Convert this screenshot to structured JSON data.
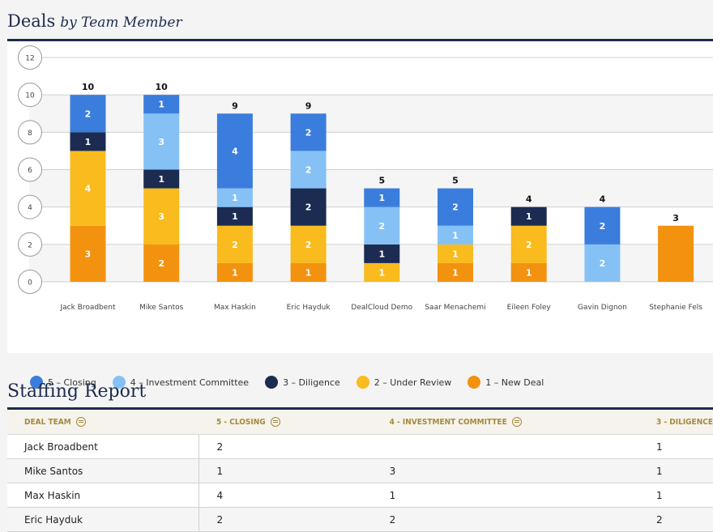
{
  "deals_section": {
    "title": "Deals",
    "subtitle": "by Team Member"
  },
  "colors": {
    "closing": "#3b7ddd",
    "investment_committee": "#86c1f5",
    "diligence": "#1b2b52",
    "under_review": "#f9bb1d",
    "new_deal": "#f3920f",
    "title": "#1c2c4c"
  },
  "chart_data": {
    "type": "bar",
    "stacked": true,
    "categories": [
      "Jack Broadbent",
      "Mike Santos",
      "Max Haskin",
      "Eric Hayduk",
      "DealCloud Demo",
      "Saar Menachemi",
      "Eileen Foley",
      "Gavin Dignon",
      "Stephanie Fels"
    ],
    "series": [
      {
        "name": "1 – New Deal",
        "color": "#f3920f",
        "values": [
          3,
          2,
          1,
          1,
          0,
          1,
          1,
          0,
          3
        ]
      },
      {
        "name": "2 – Under Review",
        "color": "#f9bb1d",
        "values": [
          4,
          3,
          2,
          2,
          1,
          1,
          2,
          0,
          0
        ]
      },
      {
        "name": "3 – Diligence",
        "color": "#1b2b52",
        "values": [
          1,
          1,
          1,
          2,
          1,
          0,
          1,
          0,
          0
        ]
      },
      {
        "name": "4 – Investment Committee",
        "color": "#86c1f5",
        "values": [
          0,
          3,
          1,
          2,
          2,
          1,
          0,
          2,
          0
        ]
      },
      {
        "name": "5 – Closing",
        "color": "#3b7ddd",
        "values": [
          2,
          1,
          4,
          2,
          1,
          2,
          0,
          2,
          0
        ]
      }
    ],
    "segment_labels": [
      [
        3,
        4,
        1,
        null,
        2
      ],
      [
        2,
        3,
        1,
        3,
        1
      ],
      [
        1,
        2,
        1,
        1,
        4
      ],
      [
        1,
        2,
        2,
        2,
        2
      ],
      [
        null,
        1,
        1,
        2,
        1
      ],
      [
        1,
        1,
        null,
        1,
        2
      ],
      [
        1,
        2,
        1,
        null,
        null
      ],
      [
        null,
        null,
        null,
        2,
        2
      ],
      [
        null,
        null,
        null,
        null,
        null
      ]
    ],
    "totals": [
      10,
      10,
      9,
      9,
      5,
      5,
      4,
      4,
      3
    ],
    "yticks": [
      0,
      2,
      4,
      6,
      8,
      10,
      12
    ],
    "ylim": [
      0,
      12
    ],
    "grid": true,
    "legend": {
      "placement": "bottom-left",
      "entries": [
        "5 – Closing",
        "4 – Investment Committee",
        "3 – Diligence",
        "2 – Under Review",
        "1 – New Deal"
      ]
    }
  },
  "staffing_section": {
    "title": "Staffing Report",
    "columns": [
      "DEAL TEAM",
      "5 - CLOSING",
      "4 - INVESTMENT COMMITTEE",
      "3 - DILIGENCE"
    ],
    "rows": [
      [
        "Jack Broadbent",
        "2",
        "",
        "1"
      ],
      [
        "Mike Santos",
        "1",
        "3",
        "1"
      ],
      [
        "Max Haskin",
        "4",
        "1",
        "1"
      ],
      [
        "Eric Hayduk",
        "2",
        "2",
        "2"
      ]
    ]
  }
}
